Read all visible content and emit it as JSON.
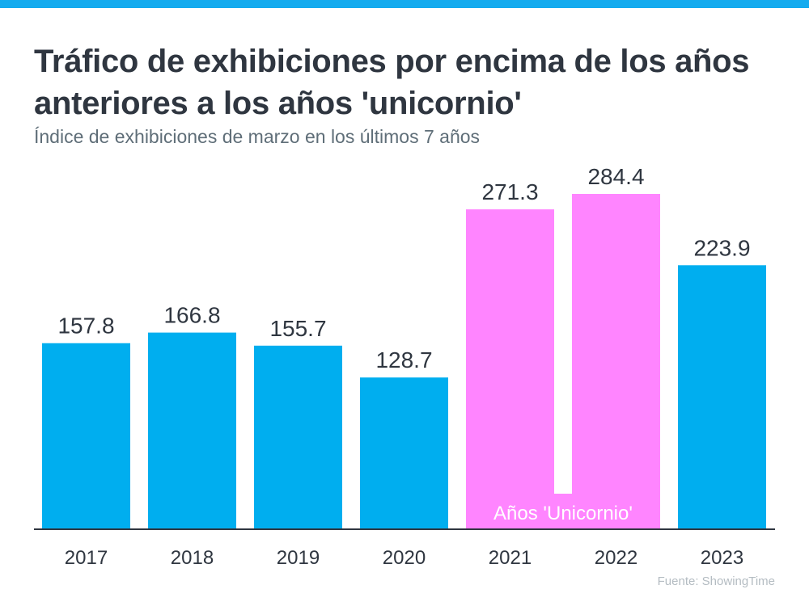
{
  "header": {
    "title": "Tráfico de exhibiciones por encima de los años anteriores a los años 'unicornio'",
    "subtitle": "Índice de exhibiciones de marzo en los últimos 7 años"
  },
  "footer": {
    "source": "Fuente: ShowingTime"
  },
  "colors": {
    "normal": "#00aeef",
    "unicorn": "#ff85ff",
    "axis": "#2f3640",
    "accent": "#14abef"
  },
  "chart_data": {
    "type": "bar",
    "title": "Tráfico de exhibiciones por encima de los años anteriores a los años 'unicornio'",
    "subtitle": "Índice de exhibiciones de marzo en los últimos 7 años",
    "xlabel": "",
    "ylabel": "",
    "ylim": [
      0,
      284.4
    ],
    "grid": false,
    "categories": [
      "2017",
      "2018",
      "2019",
      "2020",
      "2021",
      "2022",
      "2023"
    ],
    "values": [
      157.8,
      166.8,
      155.7,
      128.7,
      271.3,
      284.4,
      223.9
    ],
    "labels": [
      "157.8",
      "166.8",
      "155.7",
      "128.7",
      "271.3",
      "284.4",
      "223.9"
    ],
    "highlight": [
      "2021",
      "2022"
    ],
    "annotation": "Años 'Unicornio'",
    "source": "Fuente: ShowingTime"
  }
}
